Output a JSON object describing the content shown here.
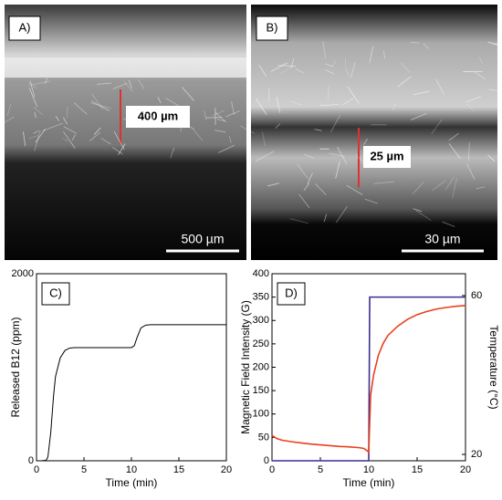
{
  "images": [
    {
      "label": "A)",
      "measurement": "400 µm",
      "scale_bar": "500 µm"
    },
    {
      "label": "B)",
      "measurement": "25 µm",
      "scale_bar": "30 µm"
    }
  ],
  "chart_data": [
    {
      "type": "line",
      "annotation": "C)",
      "x_label": "Time (min)",
      "y_label": "Released B12 (ppm)",
      "xlim": [
        0,
        20
      ],
      "xticks": [
        0,
        5,
        10,
        15,
        20
      ],
      "ylim": [
        0,
        2000
      ],
      "yticks": [
        0,
        2000
      ],
      "x": [
        0,
        0.5,
        1,
        1.2,
        1.5,
        1.8,
        2,
        2.5,
        3,
        3.5,
        4,
        5,
        10,
        10.3,
        10.6,
        11,
        11.5,
        12,
        15,
        20
      ],
      "series": [
        {
          "color": "#000000",
          "values": [
            0,
            0,
            5,
            40,
            300,
            700,
            900,
            1100,
            1180,
            1205,
            1210,
            1210,
            1210,
            1230,
            1320,
            1420,
            1450,
            1455,
            1455,
            1455
          ]
        }
      ]
    },
    {
      "type": "line",
      "annotation": "D)",
      "x_label": "Time (min)",
      "y_label": "Magnetic Field Intensity (G)",
      "y2_label": "Temperature (°C)",
      "xlim": [
        0,
        20
      ],
      "xticks": [
        0,
        5,
        10,
        15,
        20
      ],
      "ylim": [
        0,
        400
      ],
      "yticks": [
        0,
        50,
        100,
        150,
        200,
        250,
        300,
        350,
        400
      ],
      "y2lim": [
        18.4,
        65.5
      ],
      "y2ticks": [
        20,
        60
      ],
      "x": [
        0,
        0.5,
        1,
        2,
        3,
        4,
        5,
        6,
        7,
        8,
        9,
        9.5,
        9.9,
        10,
        10.1,
        10.2,
        10.5,
        11,
        11.5,
        12,
        13,
        14,
        15,
        16,
        17,
        18,
        19,
        20
      ],
      "series": [
        {
          "color": "#3b2f8f",
          "values": [
            0,
            0,
            0,
            0,
            0,
            0,
            0,
            0,
            0,
            0,
            0,
            0,
            0,
            0,
            350,
            350,
            350,
            350,
            350,
            350,
            350,
            350,
            350,
            350,
            350,
            350,
            350,
            350
          ]
        },
        {
          "color": "#e8401c",
          "axis": "y2",
          "values": [
            24.8,
            24,
            23.6,
            23.2,
            22.9,
            22.6,
            22.4,
            22.2,
            22,
            21.9,
            21.7,
            21.5,
            20.8,
            20.5,
            28,
            35,
            40,
            45,
            48,
            50,
            52.3,
            54,
            55.2,
            56,
            56.6,
            57,
            57.3,
            57.5
          ]
        }
      ]
    }
  ]
}
